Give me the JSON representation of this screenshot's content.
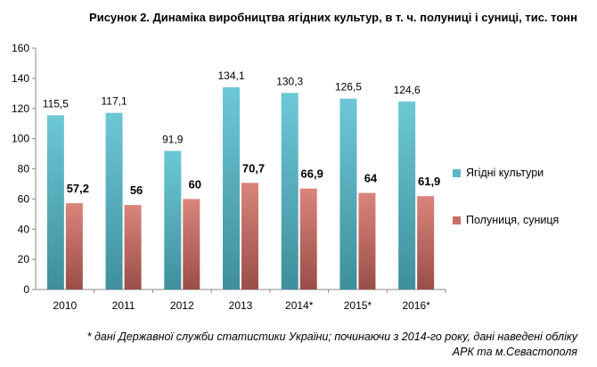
{
  "chart_data": {
    "type": "bar",
    "title": "Рисунок 2. Динаміка виробництва ягідних культур, в т. ч. полуниці і суниці, тис. тонн",
    "categories": [
      "2010",
      "2011",
      "2012",
      "2013",
      "2014*",
      "2015*",
      "2016*"
    ],
    "series": [
      {
        "name": "Ягідні культури",
        "values": [
          115.5,
          117.1,
          91.9,
          134.1,
          130.3,
          126.5,
          124.6
        ],
        "labels": [
          "115,5",
          "117,1",
          "91,9",
          "134,1",
          "130,3",
          "126,5",
          "124,6"
        ],
        "color": "#5bb8c6"
      },
      {
        "name": "Полуниця, суниця",
        "values": [
          57.2,
          56,
          60,
          70.7,
          66.9,
          64,
          61.9
        ],
        "labels": [
          "57,2",
          "56",
          "60",
          "70,7",
          "66,9",
          "64",
          "61,9"
        ],
        "color": "#c86e66"
      }
    ],
    "ylim": [
      0,
      160
    ],
    "yticks": [
      0,
      20,
      40,
      60,
      80,
      100,
      120,
      140,
      160
    ],
    "grid": false,
    "legend": "right"
  },
  "footnote": {
    "line1": "* дані Державної служби статистики України; починаючи з 2014-го року, дані наведені обліку",
    "line2": "АРК та м.Севастополя"
  }
}
